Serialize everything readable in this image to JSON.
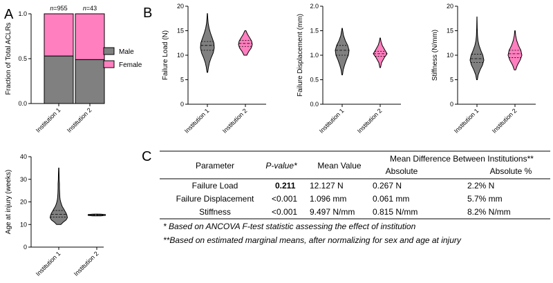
{
  "colors": {
    "gray": "#808080",
    "pink": "#ff7fbf",
    "black": "#000000"
  },
  "panel_labels": {
    "A": "A",
    "B": "B",
    "C": "C"
  },
  "chart_data": [
    {
      "id": "A_top",
      "type": "bar",
      "stacked": true,
      "categories": [
        "Institution 1",
        "Institution 2"
      ],
      "series": [
        {
          "name": "Male",
          "values": [
            0.53,
            0.49
          ],
          "color": "#808080"
        },
        {
          "name": "Female",
          "values": [
            0.47,
            0.51
          ],
          "color": "#ff7fbf"
        }
      ],
      "annotations": [
        {
          "n_label": "n",
          "n_value": "=955"
        },
        {
          "n_label": "n",
          "n_value": "=43"
        }
      ],
      "ylabel": "Fraction of Total ACLRs",
      "ylim": [
        0,
        1.0
      ],
      "yticks": [
        "0.0",
        "0.5",
        "1.0"
      ],
      "legend": [
        "Male",
        "Female"
      ]
    },
    {
      "id": "A_bottom",
      "type": "violin",
      "categories": [
        "Institution 1",
        "Institution 2"
      ],
      "ylabel": "Age at injury (weeks)",
      "ylim": [
        0,
        40
      ],
      "yticks": [
        "0",
        "10",
        "20",
        "30",
        "40"
      ],
      "groups": [
        {
          "name": "Institution 1",
          "min": 10,
          "max": 35,
          "median": 14.5,
          "q1": 13.3,
          "q3": 16.2,
          "color": "#808080",
          "profile": [
            [
              10,
              0.25
            ],
            [
              11,
              0.5
            ],
            [
              12,
              0.85
            ],
            [
              13,
              1.0
            ],
            [
              14,
              0.95
            ],
            [
              15,
              0.85
            ],
            [
              16,
              0.7
            ],
            [
              17,
              0.55
            ],
            [
              18,
              0.4
            ],
            [
              19,
              0.3
            ],
            [
              20,
              0.22
            ],
            [
              21,
              0.16
            ],
            [
              22,
              0.13
            ],
            [
              24,
              0.1
            ],
            [
              26,
              0.08
            ],
            [
              28,
              0.08
            ],
            [
              30,
              0.05
            ],
            [
              32,
              0.04
            ],
            [
              35,
              0.02
            ]
          ]
        },
        {
          "name": "Institution 2",
          "min": 13.8,
          "max": 14.6,
          "median": 14.2,
          "q1": 14.0,
          "q3": 14.4,
          "color": "#808080",
          "profile": [
            [
              13.8,
              0.5
            ],
            [
              14.0,
              1.0
            ],
            [
              14.2,
              1.0
            ],
            [
              14.4,
              1.0
            ],
            [
              14.6,
              0.5
            ]
          ]
        }
      ]
    },
    {
      "id": "B_load",
      "type": "violin",
      "categories": [
        "Institution 1",
        "Institution 2"
      ],
      "ylabel": "Failure Load (N)",
      "ylim": [
        0,
        20
      ],
      "yticks": [
        "0",
        "5",
        "10",
        "15",
        "20"
      ],
      "groups": [
        {
          "name": "Institution 1",
          "min": 6.5,
          "max": 18.5,
          "median": 12.0,
          "q1": 11.0,
          "q3": 12.8,
          "color": "#808080",
          "profile": [
            [
              6.5,
              0.05
            ],
            [
              7.5,
              0.15
            ],
            [
              8.5,
              0.3
            ],
            [
              9.5,
              0.55
            ],
            [
              10.5,
              0.85
            ],
            [
              11.5,
              1.0
            ],
            [
              12.5,
              0.95
            ],
            [
              13.5,
              0.7
            ],
            [
              14.5,
              0.45
            ],
            [
              15.5,
              0.25
            ],
            [
              16.5,
              0.12
            ],
            [
              17.5,
              0.06
            ],
            [
              18.5,
              0.02
            ]
          ]
        },
        {
          "name": "Institution 2",
          "min": 10.0,
          "max": 15.0,
          "median": 12.4,
          "q1": 11.8,
          "q3": 13.0,
          "color": "#ff7fbf",
          "profile": [
            [
              10.0,
              0.2
            ],
            [
              10.8,
              0.5
            ],
            [
              11.5,
              0.85
            ],
            [
              12.2,
              1.0
            ],
            [
              12.9,
              0.9
            ],
            [
              13.6,
              0.6
            ],
            [
              14.3,
              0.3
            ],
            [
              15.0,
              0.08
            ]
          ]
        }
      ]
    },
    {
      "id": "B_disp",
      "type": "violin",
      "categories": [
        "Institution 1",
        "Institution 2"
      ],
      "ylabel": "Failure Displacement (mm)",
      "ylim": [
        0,
        2.0
      ],
      "yticks": [
        "0.0",
        "0.5",
        "1.0",
        "1.5",
        "2.0"
      ],
      "groups": [
        {
          "name": "Institution 1",
          "min": 0.6,
          "max": 1.55,
          "median": 1.1,
          "q1": 1.0,
          "q3": 1.2,
          "color": "#808080",
          "profile": [
            [
              0.6,
              0.05
            ],
            [
              0.7,
              0.15
            ],
            [
              0.8,
              0.35
            ],
            [
              0.9,
              0.6
            ],
            [
              1.0,
              0.9
            ],
            [
              1.1,
              1.0
            ],
            [
              1.2,
              0.8
            ],
            [
              1.3,
              0.45
            ],
            [
              1.4,
              0.2
            ],
            [
              1.5,
              0.08
            ],
            [
              1.55,
              0.03
            ]
          ]
        },
        {
          "name": "Institution 2",
          "min": 0.75,
          "max": 1.35,
          "median": 1.03,
          "q1": 0.98,
          "q3": 1.08,
          "color": "#ff7fbf",
          "profile": [
            [
              0.75,
              0.05
            ],
            [
              0.85,
              0.2
            ],
            [
              0.95,
              0.6
            ],
            [
              1.03,
              1.0
            ],
            [
              1.1,
              0.7
            ],
            [
              1.2,
              0.3
            ],
            [
              1.28,
              0.12
            ],
            [
              1.35,
              0.03
            ]
          ]
        }
      ]
    },
    {
      "id": "B_stiff",
      "type": "violin",
      "categories": [
        "Institution 1",
        "Institution 2"
      ],
      "ylabel": "Stiffness (N/mm)",
      "ylim": [
        0,
        20
      ],
      "yticks": [
        "0",
        "5",
        "10",
        "15",
        "20"
      ],
      "groups": [
        {
          "name": "Institution 1",
          "min": 5.0,
          "max": 17.8,
          "median": 9.3,
          "q1": 8.5,
          "q3": 10.2,
          "color": "#808080",
          "profile": [
            [
              5.0,
              0.05
            ],
            [
              6.0,
              0.18
            ],
            [
              7.0,
              0.45
            ],
            [
              8.0,
              0.8
            ],
            [
              9.0,
              1.0
            ],
            [
              10.0,
              0.85
            ],
            [
              11.0,
              0.55
            ],
            [
              12.0,
              0.3
            ],
            [
              13.0,
              0.15
            ],
            [
              14.0,
              0.08
            ],
            [
              15.5,
              0.04
            ],
            [
              17.8,
              0.01
            ]
          ]
        },
        {
          "name": "Institution 2",
          "min": 7.0,
          "max": 15.0,
          "median": 10.3,
          "q1": 9.5,
          "q3": 11.0,
          "color": "#ff7fbf",
          "profile": [
            [
              7.0,
              0.1
            ],
            [
              8.0,
              0.35
            ],
            [
              9.0,
              0.75
            ],
            [
              10.0,
              1.0
            ],
            [
              11.0,
              0.85
            ],
            [
              12.0,
              0.5
            ],
            [
              13.0,
              0.25
            ],
            [
              14.0,
              0.1
            ],
            [
              15.0,
              0.03
            ]
          ]
        }
      ]
    }
  ],
  "table": {
    "title": "Mean Difference Between Institutions**",
    "headers": [
      "Parameter",
      "P-value*",
      "Mean Value",
      "Absolute",
      "Absolute %"
    ],
    "rows": [
      [
        "Failure Load",
        "0.211",
        "12.127 N",
        "0.267 N",
        "2.2% N"
      ],
      [
        "Failure Displacement",
        "<0.001",
        "1.096 mm",
        "0.061 mm",
        "5.7% mm"
      ],
      [
        "Stiffness",
        "<0.001",
        "9.497 N/mm",
        "0.815 N/mm",
        "8.2% N/mm"
      ]
    ],
    "footnotes": [
      "*  Based on ANCOVA F-test statistic assessing the effect of institution",
      "**Based on estimated marginal means, after normalizing for sex and age at injury"
    ]
  }
}
